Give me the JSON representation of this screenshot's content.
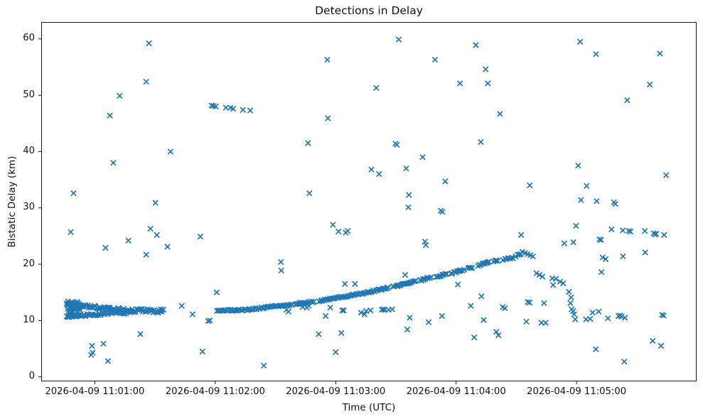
{
  "figure": {
    "background": "#ffffff",
    "spine_color": "#1a1a1a",
    "text_color": "#111111"
  },
  "chart_data": {
    "type": "scatter",
    "title": "Detections in Delay",
    "xlabel": "Time (UTC)",
    "ylabel": "Bistatic Delay (km)",
    "marker": "x",
    "color": "#1f77b4",
    "grid": false,
    "legend": "none",
    "x_unit_note": "x values are seconds after 2026-04-09 11:00:00 UTC",
    "xlim": [
      33.3,
      359.8
    ],
    "ylim": [
      -0.8,
      63.0
    ],
    "xticks": [
      {
        "t": 60,
        "label": "2026-04-09 11:01:00"
      },
      {
        "t": 120,
        "label": "2026-04-09 11:02:00"
      },
      {
        "t": 180,
        "label": "2026-04-09 11:03:00"
      },
      {
        "t": 240,
        "label": "2026-04-09 11:04:00"
      },
      {
        "t": 300,
        "label": "2026-04-09 11:05:00"
      }
    ],
    "yticks": [
      0,
      10,
      20,
      30,
      40,
      50,
      60
    ],
    "points": [
      [
        48.0,
        25.7
      ],
      [
        49.4,
        32.6
      ],
      [
        58.2,
        3.9
      ],
      [
        58.6,
        5.5
      ],
      [
        58.9,
        4.3
      ],
      [
        64.3,
        5.9
      ],
      [
        65.3,
        22.9
      ],
      [
        66.5,
        2.8
      ],
      [
        67.5,
        46.4
      ],
      [
        69.2,
        38.0
      ],
      [
        72.4,
        49.9
      ],
      [
        76.7,
        24.2
      ],
      [
        82.7,
        7.6
      ],
      [
        85.6,
        21.7
      ],
      [
        85.6,
        52.4
      ],
      [
        87.0,
        59.2
      ],
      [
        87.7,
        26.3
      ],
      [
        90.2,
        30.9
      ],
      [
        90.9,
        25.2
      ],
      [
        93.0,
        12.0
      ],
      [
        94.0,
        11.9
      ],
      [
        96.2,
        23.1
      ],
      [
        97.7,
        40.0
      ],
      [
        103.3,
        12.6
      ],
      [
        108.7,
        11.1
      ],
      [
        112.6,
        24.9
      ],
      [
        113.6,
        4.5
      ],
      [
        116.5,
        9.9
      ],
      [
        117.3,
        10.0
      ],
      [
        118.2,
        48.2
      ],
      [
        119.0,
        48.1
      ],
      [
        120.3,
        48.0
      ],
      [
        125.3,
        47.8
      ],
      [
        127.6,
        47.8
      ],
      [
        128.9,
        47.6
      ],
      [
        133.8,
        47.4
      ],
      [
        137.4,
        47.3
      ],
      [
        120.7,
        15.0
      ],
      [
        144.2,
        2.0
      ],
      [
        152.7,
        20.4
      ],
      [
        152.9,
        18.9
      ],
      [
        155.5,
        11.9
      ],
      [
        156.5,
        11.6
      ],
      [
        162.5,
        12.9
      ],
      [
        163.5,
        12.4
      ],
      [
        164.5,
        12.7
      ],
      [
        165.6,
        12.3
      ],
      [
        166.2,
        41.5
      ],
      [
        166.9,
        32.6
      ],
      [
        166.6,
        12.6
      ],
      [
        171.5,
        7.6
      ],
      [
        175.0,
        10.8
      ],
      [
        175.8,
        56.3
      ],
      [
        176.1,
        45.9
      ],
      [
        177.3,
        12.3
      ],
      [
        178.6,
        27.0
      ],
      [
        180.0,
        4.4
      ],
      [
        181.4,
        25.8
      ],
      [
        182.8,
        7.8
      ],
      [
        183.3,
        11.8
      ],
      [
        184.0,
        11.8
      ],
      [
        184.6,
        16.5
      ],
      [
        185.0,
        25.6
      ],
      [
        186.0,
        25.9
      ],
      [
        189.6,
        16.5
      ],
      [
        192.6,
        11.4
      ],
      [
        194.4,
        11.1
      ],
      [
        195.2,
        11.7
      ],
      [
        197.4,
        11.8
      ],
      [
        197.8,
        36.8
      ],
      [
        200.2,
        51.3
      ],
      [
        201.6,
        36.0
      ],
      [
        203.0,
        11.9
      ],
      [
        203.7,
        12.0
      ],
      [
        204.5,
        11.9
      ],
      [
        206.3,
        11.9
      ],
      [
        208.2,
        12.0
      ],
      [
        209.8,
        41.4
      ],
      [
        210.5,
        41.2
      ],
      [
        211.4,
        59.9
      ],
      [
        214.6,
        18.1
      ],
      [
        215.1,
        37.0
      ],
      [
        215.7,
        8.4
      ],
      [
        216.2,
        30.1
      ],
      [
        216.5,
        32.3
      ],
      [
        216.9,
        10.5
      ],
      [
        223.3,
        39.0
      ],
      [
        224.5,
        24.0
      ],
      [
        224.9,
        23.4
      ],
      [
        226.3,
        9.7
      ],
      [
        229.5,
        56.3
      ],
      [
        232.4,
        29.5
      ],
      [
        233.0,
        10.8
      ],
      [
        233.2,
        29.3
      ],
      [
        234.6,
        34.7
      ],
      [
        240.9,
        16.4
      ],
      [
        241.9,
        52.1
      ],
      [
        247.3,
        12.6
      ],
      [
        249.0,
        7.0
      ],
      [
        249.8,
        58.9
      ],
      [
        252.3,
        41.7
      ],
      [
        252.6,
        14.3
      ],
      [
        253.7,
        10.1
      ],
      [
        254.7,
        54.6
      ],
      [
        255.8,
        52.1
      ],
      [
        260.0,
        8.0
      ],
      [
        261.1,
        7.4
      ],
      [
        261.8,
        46.7
      ],
      [
        263.2,
        12.4
      ],
      [
        264.3,
        12.2
      ],
      [
        272.4,
        25.2
      ],
      [
        273.0,
        22.2
      ],
      [
        274.3,
        22.0
      ],
      [
        275.0,
        9.8
      ],
      [
        275.6,
        21.8
      ],
      [
        275.7,
        13.3
      ],
      [
        276.6,
        13.2
      ],
      [
        276.7,
        34.0
      ],
      [
        277.0,
        21.6
      ],
      [
        278.2,
        21.4
      ],
      [
        280.0,
        18.4
      ],
      [
        281.5,
        18.1
      ],
      [
        282.5,
        9.6
      ],
      [
        283.0,
        17.8
      ],
      [
        283.8,
        13.1
      ],
      [
        284.6,
        9.6
      ],
      [
        287.9,
        17.5
      ],
      [
        288.3,
        16.3
      ],
      [
        289.7,
        17.4
      ],
      [
        291.8,
        16.9
      ],
      [
        293.3,
        16.6
      ],
      [
        293.9,
        23.7
      ],
      [
        296.2,
        15.1
      ],
      [
        296.9,
        13.1
      ],
      [
        297.3,
        14.1
      ],
      [
        297.5,
        12.0
      ],
      [
        298.3,
        11.7
      ],
      [
        298.4,
        23.9
      ],
      [
        298.8,
        11.1
      ],
      [
        299.3,
        10.2
      ],
      [
        299.7,
        26.8
      ],
      [
        300.8,
        37.5
      ],
      [
        301.8,
        59.5
      ],
      [
        302.2,
        31.4
      ],
      [
        304.7,
        10.2
      ],
      [
        305.0,
        33.9
      ],
      [
        306.8,
        10.3
      ],
      [
        308.0,
        11.4
      ],
      [
        309.6,
        4.9
      ],
      [
        309.7,
        57.3
      ],
      [
        310.0,
        31.2
      ],
      [
        311.0,
        11.6
      ],
      [
        311.4,
        24.4
      ],
      [
        312.2,
        24.3
      ],
      [
        312.4,
        18.6
      ],
      [
        313.0,
        21.2
      ],
      [
        314.5,
        20.9
      ],
      [
        315.6,
        10.4
      ],
      [
        317.4,
        26.2
      ],
      [
        318.6,
        31.0
      ],
      [
        319.3,
        30.7
      ],
      [
        320.9,
        10.8
      ],
      [
        321.7,
        10.9
      ],
      [
        322.4,
        10.7
      ],
      [
        323.0,
        26.0
      ],
      [
        323.1,
        21.4
      ],
      [
        323.8,
        2.7
      ],
      [
        324.1,
        10.5
      ],
      [
        325.2,
        49.1
      ],
      [
        326.0,
        25.9
      ],
      [
        326.8,
        25.8
      ],
      [
        334.0,
        25.9
      ],
      [
        334.2,
        22.1
      ],
      [
        336.5,
        51.9
      ],
      [
        337.9,
        6.4
      ],
      [
        338.4,
        25.5
      ],
      [
        339.0,
        25.3
      ],
      [
        339.7,
        25.4
      ],
      [
        341.5,
        57.4
      ],
      [
        342.1,
        5.5
      ],
      [
        342.6,
        11.0
      ],
      [
        343.4,
        10.9
      ],
      [
        343.6,
        25.2
      ],
      [
        344.6,
        35.8
      ]
    ],
    "dense_series": [
      {
        "name": "initial-band-blob",
        "kind": "blob",
        "t_range": [
          46,
          53
        ],
        "delay_range": [
          10.6,
          13.4
        ],
        "n": 40,
        "seed": 11
      },
      {
        "name": "initial-band-upper",
        "kind": "strand",
        "polyline": [
          [
            46,
            13.2
          ],
          [
            56,
            12.6
          ],
          [
            66,
            12.1
          ],
          [
            76,
            11.9
          ]
        ],
        "jitter": 0.25,
        "n": 55,
        "seed": 12
      },
      {
        "name": "initial-band-lower",
        "kind": "strand",
        "polyline": [
          [
            46,
            10.8
          ],
          [
            58,
            11.0
          ],
          [
            68,
            11.3
          ],
          [
            76,
            11.4
          ]
        ],
        "jitter": 0.2,
        "n": 45,
        "seed": 13
      },
      {
        "name": "initial-band-merged",
        "kind": "strand",
        "polyline": [
          [
            76,
            11.8
          ],
          [
            85,
            11.75
          ],
          [
            94,
            11.7
          ]
        ],
        "jitter": 0.3,
        "n": 30,
        "seed": 14
      },
      {
        "name": "main-rising-track",
        "kind": "strand",
        "polyline": [
          [
            121,
            11.75
          ],
          [
            128,
            11.85
          ],
          [
            136,
            11.95
          ],
          [
            144,
            12.25
          ],
          [
            151,
            12.6
          ],
          [
            160,
            12.95
          ],
          [
            166,
            13.2
          ],
          [
            172,
            13.55
          ],
          [
            178,
            13.9
          ],
          [
            185,
            14.3
          ],
          [
            191,
            14.7
          ],
          [
            196,
            15.0
          ],
          [
            203,
            15.6
          ],
          [
            210,
            16.1
          ],
          [
            218,
            16.8
          ],
          [
            225,
            17.4
          ],
          [
            232,
            17.95
          ],
          [
            238,
            18.45
          ],
          [
            243,
            18.9
          ],
          [
            247,
            19.35
          ],
          [
            251,
            19.8
          ],
          [
            255,
            20.3
          ],
          [
            260,
            20.6
          ],
          [
            264,
            20.8
          ],
          [
            268,
            21.1
          ],
          [
            272,
            21.9
          ]
        ],
        "jitter": 0.13,
        "n": 215,
        "seed": 15,
        "gaps": [
          [
            158.5,
            160.0
          ],
          [
            169.5,
            171.0
          ],
          [
            206.5,
            208.0
          ],
          [
            220.5,
            222.0
          ],
          [
            228.0,
            229.5
          ],
          [
            235.5,
            237.0
          ],
          [
            244.0,
            245.5
          ],
          [
            248.5,
            250.0
          ],
          [
            256.5,
            258.5
          ],
          [
            261.5,
            263.0
          ],
          [
            268.5,
            269.5
          ]
        ]
      }
    ]
  }
}
